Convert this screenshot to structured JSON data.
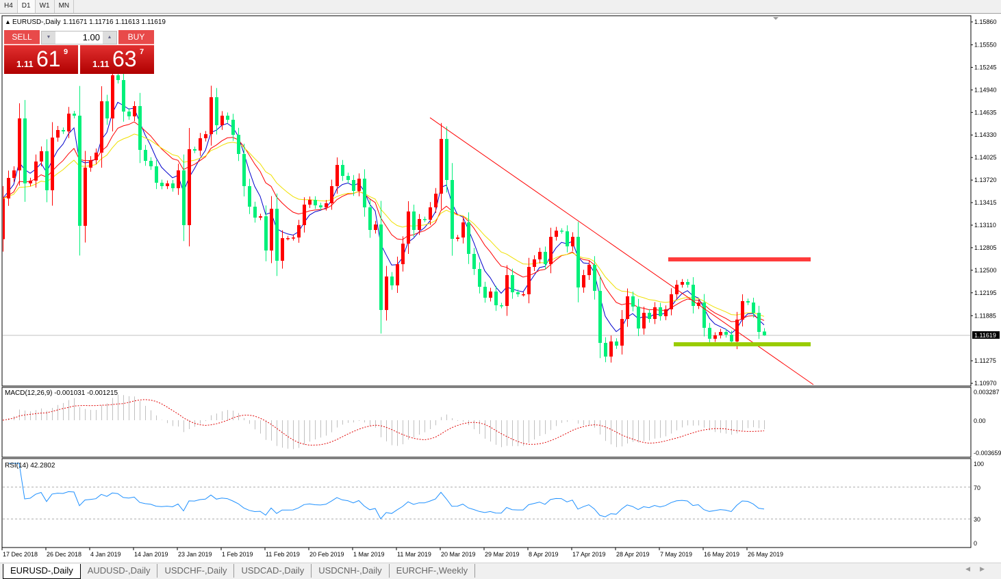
{
  "toolbar": {
    "timeframes": [
      "H4",
      "D1",
      "W1",
      "MN"
    ],
    "active": "D1"
  },
  "header": {
    "symbol": "EURUSD-,Daily",
    "ohlc": "1.11671 1.11716 1.11613 1.11619"
  },
  "trade": {
    "sell_label": "SELL",
    "buy_label": "BUY",
    "lot": "1.00",
    "sell_prefix": "1.11",
    "sell_big": "61",
    "sell_sup": "9",
    "buy_prefix": "1.11",
    "buy_big": "63",
    "buy_sup": "7"
  },
  "indicators": {
    "macd_label": "MACD(12,26,9) -0.001031 -0.001215",
    "rsi_label": "RSI(14) 42.2802"
  },
  "tabs": [
    "EURUSD-,Daily",
    "AUDUSD-,Daily",
    "USDCHF-,Daily",
    "USDCAD-,Daily",
    "USDCNH-,Daily",
    "EURCHF-,Weekly"
  ],
  "colors": {
    "bull": "#ff0000",
    "bear": "#00f07a",
    "ma_fast": "#0000cc",
    "ma_mid": "#ff0000",
    "ma_slow": "#f0e000",
    "rsi": "#1e90ff",
    "resistance": "#ff3b3b",
    "support": "#99cc00",
    "trendline": "#ff0000"
  },
  "chart_data": {
    "type": "candlestick",
    "symbol": "EURUSD-",
    "timeframe": "Daily",
    "price_ticks": [
      "1.15860",
      "1.15550",
      "1.15245",
      "1.14940",
      "1.14635",
      "1.14330",
      "1.14025",
      "1.13720",
      "1.13415",
      "1.13110",
      "1.12805",
      "1.12500",
      "1.12195",
      "1.11885",
      "1.11275",
      "1.10970"
    ],
    "current_price": "1.11619",
    "ylim": [
      1.1097,
      1.1586
    ],
    "date_ticks": [
      "17 Dec 2018",
      "26 Dec 2018",
      "4 Jan 2019",
      "14 Jan 2019",
      "23 Jan 2019",
      "1 Feb 2019",
      "11 Feb 2019",
      "20 Feb 2019",
      "1 Mar 2019",
      "11 Mar 2019",
      "20 Mar 2019",
      "29 Mar 2019",
      "8 Apr 2019",
      "17 Apr 2019",
      "28 Apr 2019",
      "7 May 2019",
      "16 May 2019",
      "26 May 2019"
    ],
    "first_open": 1.1292,
    "last_bar": {
      "open": 1.11671,
      "high": 1.11716,
      "low": 1.11613,
      "close": 1.11619
    },
    "closes": [
      1.13471,
      1.13749,
      1.13851,
      1.14554,
      1.13675,
      1.13712,
      1.13971,
      1.1411,
      1.13582,
      1.14295,
      1.14397,
      1.14378,
      1.14619,
      1.14591,
      1.13101,
      1.13888,
      1.13989,
      1.14091,
      1.14786,
      1.14554,
      1.15138,
      1.15073,
      1.14647,
      1.14582,
      1.14721,
      1.14128,
      1.1398,
      1.13906,
      1.13684,
      1.13638,
      1.13675,
      1.1361,
      1.13851,
      1.1311,
      1.14138,
      1.14119,
      1.14286,
      1.14341,
      1.14841,
      1.14462,
      1.14591,
      1.14536,
      1.14332,
      1.14073,
      1.13638,
      1.1336,
      1.13212,
      1.1323,
      1.12767,
      1.13332,
      1.12628,
      1.12934,
      1.12934,
      1.12943,
      1.1311,
      1.13388,
      1.13452,
      1.13378,
      1.13351,
      1.13406,
      1.13638,
      1.13925,
      1.13776,
      1.13721,
      1.13573,
      1.13739,
      1.13351,
      1.13045,
      1.13119,
      1.11962,
      1.12415,
      1.12295,
      1.12582,
      1.1286,
      1.13295,
      1.13045,
      1.13193,
      1.13184,
      1.13351,
      1.13536,
      1.14277,
      1.13721,
      1.12925,
      1.12943,
      1.13147,
      1.12721,
      1.12517,
      1.12276,
      1.12128,
      1.12212,
      1.12026,
      1.12017,
      1.12434,
      1.12202,
      1.12175,
      1.12175,
      1.12545,
      1.12647,
      1.12749,
      1.12582,
      1.12952,
      1.13036,
      1.13027,
      1.12823,
      1.12952,
      1.12267,
      1.12434,
      1.12573,
      1.12221,
      1.11517,
      1.11332,
      1.11536,
      1.1148,
      1.11841,
      1.12147,
      1.12008,
      1.11712,
      1.11924,
      1.11841,
      1.11999,
      1.11878,
      1.11971,
      1.12175,
      1.12304,
      1.12341,
      1.12304,
      1.12017,
      1.12063,
      1.11721,
      1.11573,
      1.11619,
      1.11665,
      1.11628,
      1.11536,
      1.11832,
      1.12082,
      1.12063,
      1.11924,
      1.11665,
      1.11619
    ],
    "annotations": {
      "trendline": {
        "from": {
          "bar": 78,
          "price": 1.14564
        },
        "to": {
          "bar": 148,
          "price": 1.10952
        }
      },
      "resistance": {
        "price": 1.12647,
        "from_bar": 122,
        "to_bar": 148
      },
      "support": {
        "price": 1.11498,
        "from_bar": 123,
        "to_bar": 148
      }
    },
    "moving_averages": [
      "fast",
      "mid",
      "slow"
    ],
    "macd": {
      "params": "12,26,9",
      "ticks": [
        "0.003287",
        "0.00",
        "-0.003659"
      ],
      "range": [
        -0.003659,
        0.003287
      ]
    },
    "rsi": {
      "period": 14,
      "ticks": [
        "100",
        "70",
        "30",
        "0"
      ],
      "levels": [
        70,
        30
      ]
    }
  }
}
